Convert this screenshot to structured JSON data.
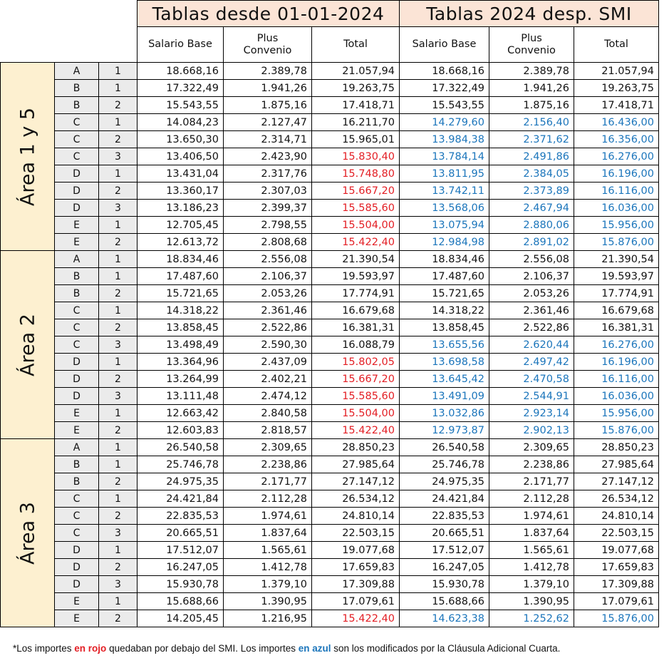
{
  "headers": {
    "group1_title": "Tablas desde 01-01-2024",
    "group2_title": "Tablas 2024 desp. SMI",
    "col_salario_base": "Salario Base",
    "col_plus_l1": "Plus",
    "col_plus_l2": "Convenio",
    "col_total": "Total"
  },
  "colors": {
    "red": "#e31e24",
    "blue": "#1b75bb",
    "area_bg": "#fdf0d0",
    "title_bg": "#fbe4d6"
  },
  "areas": [
    {
      "label": "Área 1  y  5",
      "rows": [
        {
          "cat": "A",
          "lvl": "1",
          "v": [
            "18.668,16",
            "2.389,78",
            "21.057,94",
            "18.668,16",
            "2.389,78",
            "21.057,94"
          ],
          "c": [
            "",
            "",
            "",
            "",
            "",
            ""
          ]
        },
        {
          "cat": "B",
          "lvl": "1",
          "v": [
            "17.322,49",
            "1.941,26",
            "19.263,75",
            "17.322,49",
            "1.941,26",
            "19.263,75"
          ],
          "c": [
            "",
            "",
            "",
            "",
            "",
            ""
          ]
        },
        {
          "cat": "B",
          "lvl": "2",
          "v": [
            "15.543,55",
            "1.875,16",
            "17.418,71",
            "15.543,55",
            "1.875,16",
            "17.418,71"
          ],
          "c": [
            "",
            "",
            "",
            "",
            "",
            ""
          ]
        },
        {
          "cat": "C",
          "lvl": "1",
          "v": [
            "14.084,23",
            "2.127,47",
            "16.211,70",
            "14.279,60",
            "2.156,40",
            "16.436,00"
          ],
          "c": [
            "",
            "",
            "",
            "b",
            "b",
            "b"
          ]
        },
        {
          "cat": "C",
          "lvl": "2",
          "v": [
            "13.650,30",
            "2.314,71",
            "15.965,01",
            "13.984,38",
            "2.371,62",
            "16.356,00"
          ],
          "c": [
            "",
            "",
            "",
            "b",
            "b",
            "b"
          ]
        },
        {
          "cat": "C",
          "lvl": "3",
          "v": [
            "13.406,50",
            "2.423,90",
            "15.830,40",
            "13.784,14",
            "2.491,86",
            "16.276,00"
          ],
          "c": [
            "",
            "",
            "r",
            "b",
            "b",
            "b"
          ]
        },
        {
          "cat": "D",
          "lvl": "1",
          "v": [
            "13.431,04",
            "2.317,76",
            "15.748,80",
            "13.811,95",
            "2.384,05",
            "16.196,00"
          ],
          "c": [
            "",
            "",
            "r",
            "b",
            "b",
            "b"
          ]
        },
        {
          "cat": "D",
          "lvl": "2",
          "v": [
            "13.360,17",
            "2.307,03",
            "15.667,20",
            "13.742,11",
            "2.373,89",
            "16.116,00"
          ],
          "c": [
            "",
            "",
            "r",
            "b",
            "b",
            "b"
          ]
        },
        {
          "cat": "D",
          "lvl": "3",
          "v": [
            "13.186,23",
            "2.399,37",
            "15.585,60",
            "13.568,06",
            "2.467,94",
            "16.036,00"
          ],
          "c": [
            "",
            "",
            "r",
            "b",
            "b",
            "b"
          ]
        },
        {
          "cat": "E",
          "lvl": "1",
          "v": [
            "12.705,45",
            "2.798,55",
            "15.504,00",
            "13.075,94",
            "2.880,06",
            "15.956,00"
          ],
          "c": [
            "",
            "",
            "r",
            "b",
            "b",
            "b"
          ]
        },
        {
          "cat": "E",
          "lvl": "2",
          "v": [
            "12.613,72",
            "2.808,68",
            "15.422,40",
            "12.984,98",
            "2.891,02",
            "15.876,00"
          ],
          "c": [
            "",
            "",
            "r",
            "b",
            "b",
            "b"
          ]
        }
      ]
    },
    {
      "label": "Área 2",
      "rows": [
        {
          "cat": "A",
          "lvl": "1",
          "v": [
            "18.834,46",
            "2.556,08",
            "21.390,54",
            "18.834,46",
            "2.556,08",
            "21.390,54"
          ],
          "c": [
            "",
            "",
            "",
            "",
            "",
            ""
          ]
        },
        {
          "cat": "B",
          "lvl": "1",
          "v": [
            "17.487,60",
            "2.106,37",
            "19.593,97",
            "17.487,60",
            "2.106,37",
            "19.593,97"
          ],
          "c": [
            "",
            "",
            "",
            "",
            "",
            ""
          ]
        },
        {
          "cat": "B",
          "lvl": "2",
          "v": [
            "15.721,65",
            "2.053,26",
            "17.774,91",
            "15.721,65",
            "2.053,26",
            "17.774,91"
          ],
          "c": [
            "",
            "",
            "",
            "",
            "",
            ""
          ]
        },
        {
          "cat": "C",
          "lvl": "1",
          "v": [
            "14.318,22",
            "2.361,46",
            "16.679,68",
            "14.318,22",
            "2.361,46",
            "16.679,68"
          ],
          "c": [
            "",
            "",
            "",
            "",
            "",
            ""
          ]
        },
        {
          "cat": "C",
          "lvl": "2",
          "v": [
            "13.858,45",
            "2.522,86",
            "16.381,31",
            "13.858,45",
            "2.522,86",
            "16.381,31"
          ],
          "c": [
            "",
            "",
            "",
            "",
            "",
            ""
          ]
        },
        {
          "cat": "C",
          "lvl": "3",
          "v": [
            "13.498,49",
            "2.590,30",
            "16.088,79",
            "13.655,56",
            "2.620,44",
            "16.276,00"
          ],
          "c": [
            "",
            "",
            "",
            "b",
            "b",
            "b"
          ]
        },
        {
          "cat": "D",
          "lvl": "1",
          "v": [
            "13.364,96",
            "2.437,09",
            "15.802,05",
            "13.698,58",
            "2.497,42",
            "16.196,00"
          ],
          "c": [
            "",
            "",
            "r",
            "b",
            "b",
            "b"
          ]
        },
        {
          "cat": "D",
          "lvl": "2",
          "v": [
            "13.264,99",
            "2.402,21",
            "15.667,20",
            "13.645,42",
            "2.470,58",
            "16.116,00"
          ],
          "c": [
            "",
            "",
            "r",
            "b",
            "b",
            "b"
          ]
        },
        {
          "cat": "D",
          "lvl": "3",
          "v": [
            "13.111,48",
            "2.474,12",
            "15.585,60",
            "13.491,09",
            "2.544,91",
            "16.036,00"
          ],
          "c": [
            "",
            "",
            "r",
            "b",
            "b",
            "b"
          ]
        },
        {
          "cat": "E",
          "lvl": "1",
          "v": [
            "12.663,42",
            "2.840,58",
            "15.504,00",
            "13.032,86",
            "2.923,14",
            "15.956,00"
          ],
          "c": [
            "",
            "",
            "r",
            "b",
            "b",
            "b"
          ]
        },
        {
          "cat": "E",
          "lvl": "2",
          "v": [
            "12.603,83",
            "2.818,57",
            "15.422,40",
            "12.973,87",
            "2.902,13",
            "15.876,00"
          ],
          "c": [
            "",
            "",
            "r",
            "b",
            "b",
            "b"
          ]
        }
      ]
    },
    {
      "label": "Área 3",
      "rows": [
        {
          "cat": "A",
          "lvl": "1",
          "v": [
            "26.540,58",
            "2.309,65",
            "28.850,23",
            "26.540,58",
            "2.309,65",
            "28.850,23"
          ],
          "c": [
            "",
            "",
            "",
            "",
            "",
            ""
          ]
        },
        {
          "cat": "B",
          "lvl": "1",
          "v": [
            "25.746,78",
            "2.238,86",
            "27.985,64",
            "25.746,78",
            "2.238,86",
            "27.985,64"
          ],
          "c": [
            "",
            "",
            "",
            "",
            "",
            ""
          ]
        },
        {
          "cat": "B",
          "lvl": "2",
          "v": [
            "24.975,35",
            "2.171,77",
            "27.147,12",
            "24.975,35",
            "2.171,77",
            "27.147,12"
          ],
          "c": [
            "",
            "",
            "",
            "",
            "",
            ""
          ]
        },
        {
          "cat": "C",
          "lvl": "1",
          "v": [
            "24.421,84",
            "2.112,28",
            "26.534,12",
            "24.421,84",
            "2.112,28",
            "26.534,12"
          ],
          "c": [
            "",
            "",
            "",
            "",
            "",
            ""
          ]
        },
        {
          "cat": "C",
          "lvl": "2",
          "v": [
            "22.835,53",
            "1.974,61",
            "24.810,14",
            "22.835,53",
            "1.974,61",
            "24.810,14"
          ],
          "c": [
            "",
            "",
            "",
            "",
            "",
            ""
          ]
        },
        {
          "cat": "C",
          "lvl": "3",
          "v": [
            "20.665,51",
            "1.837,64",
            "22.503,15",
            "20.665,51",
            "1.837,64",
            "22.503,15"
          ],
          "c": [
            "",
            "",
            "",
            "",
            "",
            ""
          ]
        },
        {
          "cat": "D",
          "lvl": "1",
          "v": [
            "17.512,07",
            "1.565,61",
            "19.077,68",
            "17.512,07",
            "1.565,61",
            "19.077,68"
          ],
          "c": [
            "",
            "",
            "",
            "",
            "",
            ""
          ]
        },
        {
          "cat": "D",
          "lvl": "2",
          "v": [
            "16.247,05",
            "1.412,78",
            "17.659,83",
            "16.247,05",
            "1.412,78",
            "17.659,83"
          ],
          "c": [
            "",
            "",
            "",
            "",
            "",
            ""
          ]
        },
        {
          "cat": "D",
          "lvl": "3",
          "v": [
            "15.930,78",
            "1.379,10",
            "17.309,88",
            "15.930,78",
            "1.379,10",
            "17.309,88"
          ],
          "c": [
            "",
            "",
            "",
            "",
            "",
            ""
          ]
        },
        {
          "cat": "E",
          "lvl": "1",
          "v": [
            "15.688,66",
            "1.390,95",
            "17.079,61",
            "15.688,66",
            "1.390,95",
            "17.079,61"
          ],
          "c": [
            "",
            "",
            "",
            "",
            "",
            ""
          ]
        },
        {
          "cat": "E",
          "lvl": "2",
          "v": [
            "14.205,45",
            "1.216,95",
            "15.422,40",
            "14.623,38",
            "1.252,62",
            "15.876,00"
          ],
          "c": [
            "",
            "",
            "r",
            "b",
            "b",
            "b"
          ]
        }
      ]
    }
  ],
  "footnote": {
    "p1": "*Los importes ",
    "red_text": "en rojo",
    "p2": " quedaban por debajo del SMI. Los importes ",
    "blue_text": "en azul",
    "p3": " son los modificados por la Cláusula Adicional Cuarta."
  }
}
